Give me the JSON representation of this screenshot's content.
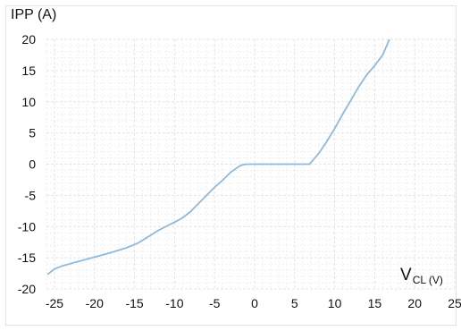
{
  "chart_data": {
    "type": "line",
    "title": "",
    "ylabel": "IPP (A)",
    "xlabel_main": "V",
    "xlabel_sub": "CL (V)",
    "xlim": [
      -26,
      25
    ],
    "ylim": [
      -20,
      20
    ],
    "xticks": [
      "-25",
      "-20",
      "-15",
      "-10",
      "-5",
      "0",
      "5",
      "10",
      "15",
      "20",
      "25"
    ],
    "yticks": [
      "20",
      "15",
      "10",
      "5",
      "0",
      "-5",
      "-10",
      "-15",
      "-20"
    ],
    "xtick_values": [
      -25,
      -20,
      -15,
      -10,
      -5,
      0,
      5,
      10,
      15,
      20,
      25
    ],
    "ytick_values": [
      20,
      15,
      10,
      5,
      0,
      -5,
      -10,
      -15,
      -20
    ],
    "grid": true,
    "legend": "none",
    "line_color": "#8fb9dc",
    "series": [
      {
        "x": [
          -25.8,
          -25,
          -24,
          -22,
          -20,
          -18,
          -16,
          -14.5,
          -13.5,
          -13,
          -12,
          -10.5,
          -10,
          -9,
          -8,
          -7,
          -6,
          -5,
          -4,
          -3,
          -2,
          -1.5,
          -1,
          -0.5,
          0,
          2,
          4,
          6,
          6.8,
          7,
          8,
          9,
          10,
          11,
          12,
          12.5,
          13,
          14,
          15,
          16,
          16.8
        ],
        "y": [
          -17.6,
          -16.8,
          -16.3,
          -15.6,
          -14.9,
          -14.2,
          -13.4,
          -12.6,
          -11.8,
          -11.4,
          -10.6,
          -9.6,
          -9.3,
          -8.6,
          -7.6,
          -6.3,
          -5.0,
          -3.7,
          -2.6,
          -1.3,
          -0.4,
          -0.1,
          0,
          0,
          0,
          0,
          0,
          0,
          0,
          0.2,
          1.7,
          3.6,
          5.7,
          8.0,
          10.2,
          11.3,
          12.4,
          14.3,
          15.8,
          17.5,
          19.9
        ]
      }
    ]
  }
}
